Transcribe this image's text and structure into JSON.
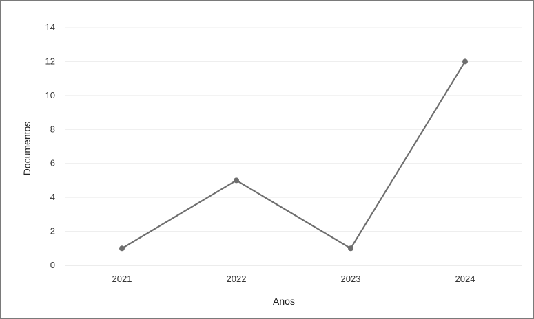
{
  "chart_data": {
    "type": "line",
    "title": "",
    "xlabel": "Anos",
    "ylabel": "Documentos",
    "categories": [
      "2021",
      "2022",
      "2023",
      "2024"
    ],
    "series": [
      {
        "values": [
          1,
          5,
          1,
          12
        ]
      }
    ],
    "ylim": [
      0,
      14
    ],
    "yticks": [
      0,
      2,
      4,
      6,
      8,
      10,
      12,
      14
    ],
    "grid": "horizontal",
    "legend": "none",
    "colors": {
      "line": "#6e6e6e",
      "grid": "#ececec",
      "axis": "#d9d9d9"
    }
  }
}
